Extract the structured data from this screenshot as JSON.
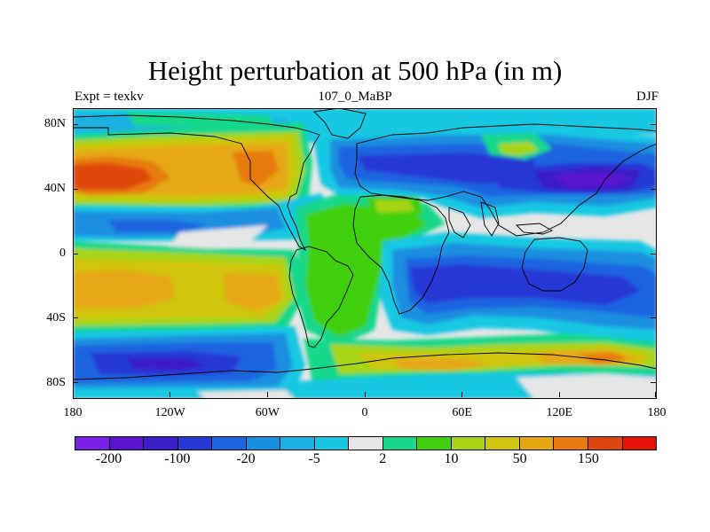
{
  "title": "Height perturbation at 500 hPa (in m)",
  "subtitle_left": "Expt = texkv",
  "subtitle_center": "107_0_MaBP",
  "subtitle_right": "DJF",
  "map": {
    "projection": "cylindrical-equidistant",
    "variable": "500 hPa height perturbation",
    "units": "m",
    "lon_range": [
      -180,
      180
    ],
    "lat_range": [
      -90,
      90
    ]
  },
  "lat_ticks": [
    {
      "label": "80N",
      "value": 80
    },
    {
      "label": "40N",
      "value": 40
    },
    {
      "label": "0",
      "value": 0
    },
    {
      "label": "40S",
      "value": -40
    },
    {
      "label": "80S",
      "value": -80
    }
  ],
  "lon_ticks": [
    {
      "label": "180",
      "value": -180
    },
    {
      "label": "120W",
      "value": -120
    },
    {
      "label": "60W",
      "value": -60
    },
    {
      "label": "0",
      "value": 0
    },
    {
      "label": "60E",
      "value": 60
    },
    {
      "label": "120E",
      "value": 120
    },
    {
      "label": "180",
      "value": 180
    }
  ],
  "colorbar": {
    "colors": [
      "#7a1fe6",
      "#5a14d0",
      "#3a1ec8",
      "#2638d6",
      "#1f63e0",
      "#1a8fe0",
      "#1ab0e0",
      "#18c8e2",
      "#e6e6e6",
      "#18d88a",
      "#3fcf10",
      "#a8d414",
      "#d0c410",
      "#e6a812",
      "#e67a10",
      "#e04610",
      "#e61208"
    ],
    "labels": [
      {
        "text": "-200",
        "index": 1
      },
      {
        "text": "-100",
        "index": 3
      },
      {
        "text": "-20",
        "index": 5
      },
      {
        "text": "-5",
        "index": 7
      },
      {
        "text": "2",
        "index": 9
      },
      {
        "text": "10",
        "index": 11
      },
      {
        "text": "50",
        "index": 13
      },
      {
        "text": "150",
        "index": 15
      }
    ]
  }
}
